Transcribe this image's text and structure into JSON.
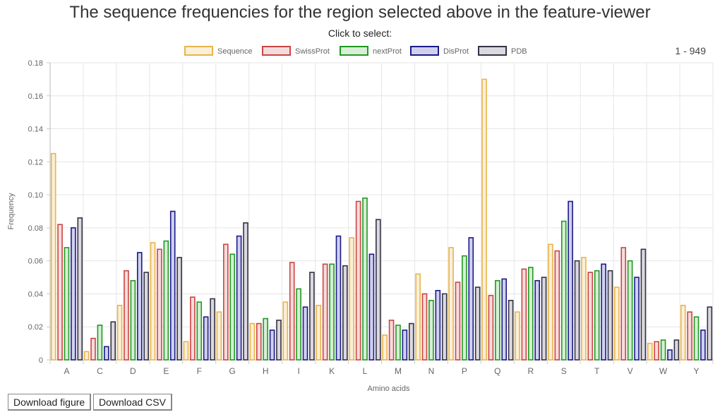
{
  "header": {
    "title": "The sequence frequencies for the region selected above in the feature-viewer",
    "subtitle": "Click to select:",
    "range": "1 - 949"
  },
  "buttons": {
    "download_figure": "Download figure",
    "download_csv": "Download CSV"
  },
  "colors": {
    "Sequence": {
      "stroke": "#e8b44a",
      "fill": "#fbefd9"
    },
    "SwissProt": {
      "stroke": "#cc4444",
      "fill": "#f5dcdc"
    },
    "nextProt": {
      "stroke": "#229922",
      "fill": "#d6efd6"
    },
    "DisProt": {
      "stroke": "#1a1a88",
      "fill": "#d0d0ee"
    },
    "PDB": {
      "stroke": "#333344",
      "fill": "#dcd8e0"
    }
  },
  "chart_data": {
    "type": "bar",
    "xlabel": "Amino acids",
    "ylabel": "Frequency",
    "ylim": [
      0,
      0.18
    ],
    "yticks": [
      "0",
      "0.02",
      "0.04",
      "0.06",
      "0.08",
      "0.10",
      "0.12",
      "0.14",
      "0.16",
      "0.18"
    ],
    "grid": true,
    "legend_position": "top-center",
    "categories": [
      "A",
      "C",
      "D",
      "E",
      "F",
      "G",
      "H",
      "I",
      "K",
      "L",
      "M",
      "N",
      "P",
      "Q",
      "R",
      "S",
      "T",
      "V",
      "W",
      "Y"
    ],
    "series": [
      {
        "name": "Sequence",
        "values": [
          0.125,
          0.005,
          0.033,
          0.071,
          0.011,
          0.029,
          0.022,
          0.035,
          0.033,
          0.074,
          0.015,
          0.052,
          0.068,
          0.17,
          0.029,
          0.07,
          0.062,
          0.044,
          0.01,
          0.033
        ]
      },
      {
        "name": "SwissProt",
        "values": [
          0.082,
          0.013,
          0.054,
          0.067,
          0.038,
          0.07,
          0.022,
          0.059,
          0.058,
          0.096,
          0.024,
          0.04,
          0.047,
          0.039,
          0.055,
          0.066,
          0.053,
          0.068,
          0.011,
          0.029
        ]
      },
      {
        "name": "nextProt",
        "values": [
          0.068,
          0.021,
          0.048,
          0.072,
          0.035,
          0.064,
          0.025,
          0.043,
          0.058,
          0.098,
          0.021,
          0.036,
          0.063,
          0.048,
          0.056,
          0.084,
          0.054,
          0.06,
          0.012,
          0.026
        ]
      },
      {
        "name": "DisProt",
        "values": [
          0.08,
          0.008,
          0.065,
          0.09,
          0.026,
          0.075,
          0.018,
          0.032,
          0.075,
          0.064,
          0.018,
          0.042,
          0.074,
          0.049,
          0.048,
          0.096,
          0.058,
          0.05,
          0.006,
          0.018
        ]
      },
      {
        "name": "PDB",
        "values": [
          0.086,
          0.023,
          0.053,
          0.062,
          0.037,
          0.083,
          0.024,
          0.053,
          0.057,
          0.085,
          0.022,
          0.04,
          0.044,
          0.036,
          0.05,
          0.06,
          0.054,
          0.067,
          0.012,
          0.032
        ]
      }
    ]
  }
}
